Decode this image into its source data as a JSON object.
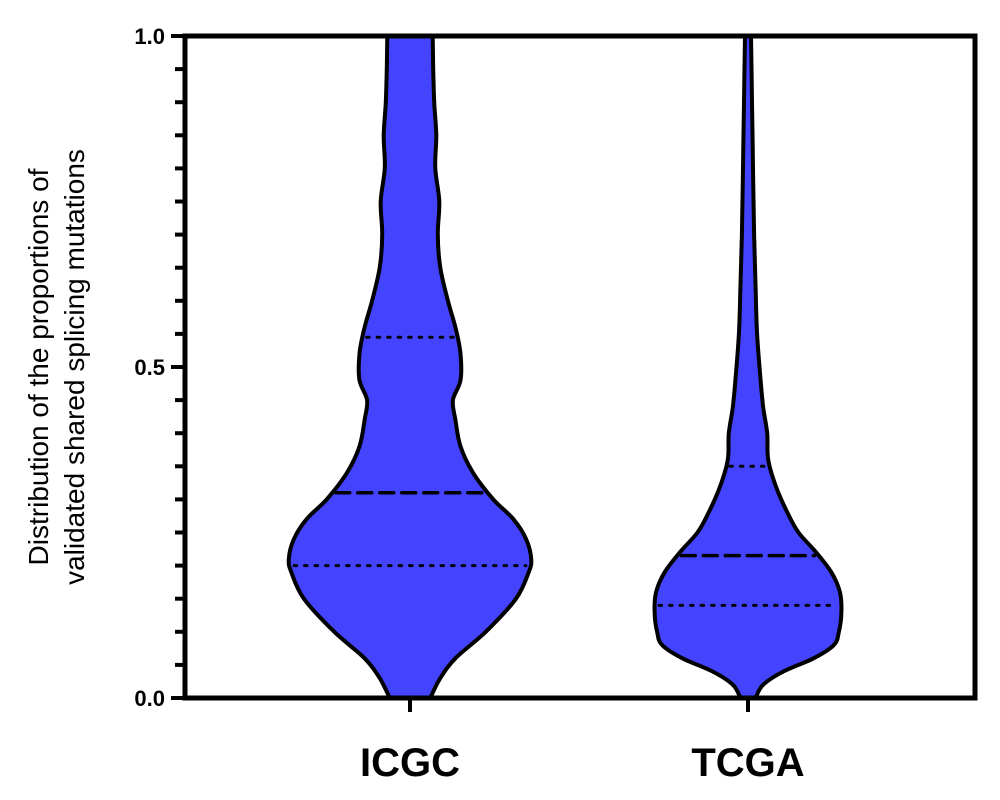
{
  "chart_data": {
    "type": "violin",
    "title": "",
    "xlabel": "",
    "ylabel_lines": [
      "Distribution of the proportions of",
      "validated shared splicing mutations"
    ],
    "ylim": [
      0,
      1
    ],
    "yticks_major": [
      {
        "value": 0.0,
        "label": "0.0"
      },
      {
        "value": 0.5,
        "label": "0.5"
      },
      {
        "value": 1.0,
        "label": "1.0"
      }
    ],
    "minor_tick_step": 0.05,
    "fill_color": "#4444ff",
    "categories": [
      "ICGC",
      "TCGA"
    ],
    "violins": [
      {
        "category": "ICGC",
        "median": 0.31,
        "q1": 0.2,
        "q3": 0.545,
        "max_half_width": 0.24,
        "profile": [
          [
            0.0,
            0.04
          ],
          [
            0.03,
            0.06
          ],
          [
            0.06,
            0.09
          ],
          [
            0.1,
            0.15
          ],
          [
            0.15,
            0.21
          ],
          [
            0.19,
            0.235
          ],
          [
            0.21,
            0.24
          ],
          [
            0.24,
            0.23
          ],
          [
            0.27,
            0.205
          ],
          [
            0.3,
            0.165
          ],
          [
            0.34,
            0.125
          ],
          [
            0.38,
            0.1
          ],
          [
            0.42,
            0.09
          ],
          [
            0.45,
            0.085
          ],
          [
            0.48,
            0.1
          ],
          [
            0.52,
            0.1
          ],
          [
            0.56,
            0.09
          ],
          [
            0.6,
            0.075
          ],
          [
            0.65,
            0.06
          ],
          [
            0.7,
            0.055
          ],
          [
            0.75,
            0.058
          ],
          [
            0.8,
            0.05
          ],
          [
            0.85,
            0.052
          ],
          [
            0.9,
            0.048
          ],
          [
            0.95,
            0.046
          ],
          [
            1.0,
            0.045
          ]
        ]
      },
      {
        "category": "TCGA",
        "median": 0.215,
        "q1": 0.14,
        "q3": 0.35,
        "max_half_width": 0.185,
        "profile": [
          [
            0.0,
            0.015
          ],
          [
            0.02,
            0.03
          ],
          [
            0.04,
            0.07
          ],
          [
            0.06,
            0.13
          ],
          [
            0.08,
            0.17
          ],
          [
            0.1,
            0.18
          ],
          [
            0.13,
            0.185
          ],
          [
            0.16,
            0.182
          ],
          [
            0.19,
            0.165
          ],
          [
            0.22,
            0.135
          ],
          [
            0.25,
            0.1
          ],
          [
            0.28,
            0.078
          ],
          [
            0.32,
            0.055
          ],
          [
            0.36,
            0.04
          ],
          [
            0.4,
            0.038
          ],
          [
            0.44,
            0.03
          ],
          [
            0.48,
            0.025
          ],
          [
            0.55,
            0.018
          ],
          [
            0.62,
            0.015
          ],
          [
            0.7,
            0.012
          ],
          [
            0.8,
            0.01
          ],
          [
            0.9,
            0.008
          ],
          [
            1.0,
            0.006
          ]
        ]
      }
    ]
  }
}
